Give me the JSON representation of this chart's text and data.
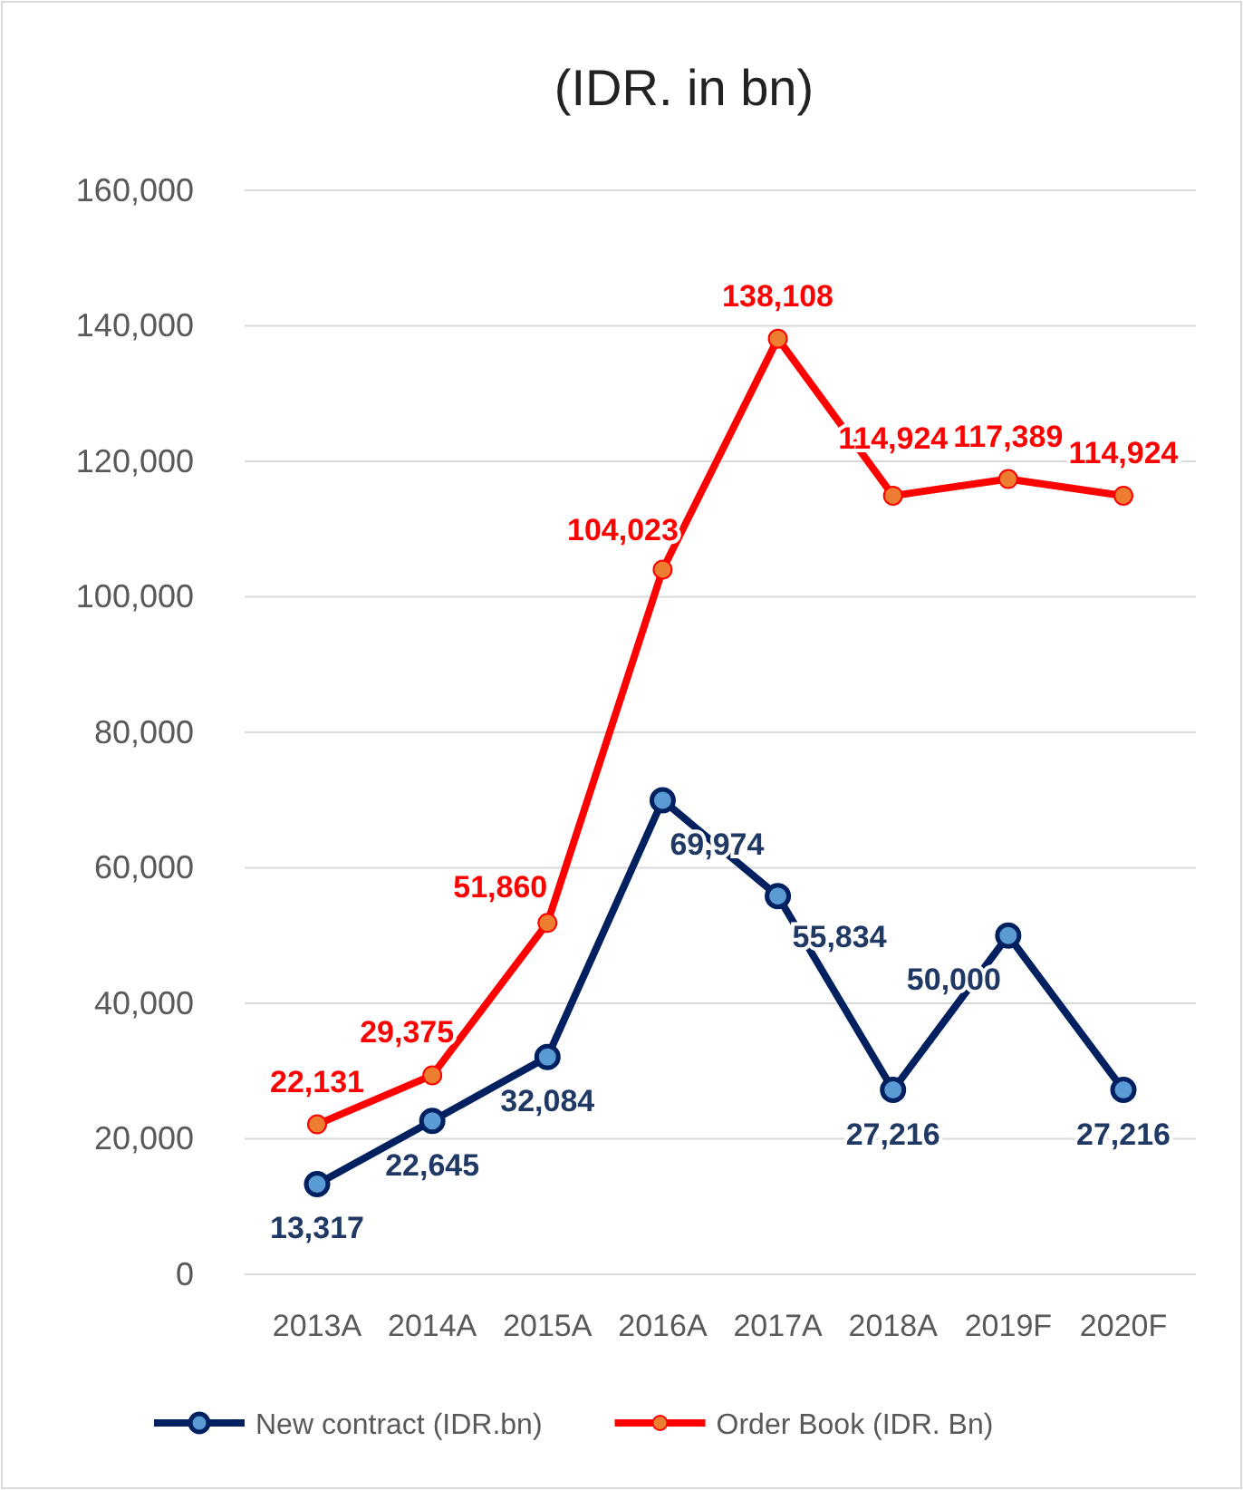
{
  "chart_data": {
    "type": "line",
    "title": "(IDR. in bn)",
    "categories": [
      "2013A",
      "2014A",
      "2015A",
      "2016A",
      "2017A",
      "2018A",
      "2019F",
      "2020F"
    ],
    "series": [
      {
        "name": "New contract (IDR.bn)",
        "color": "#002060",
        "values": [
          13317,
          22645,
          32084,
          69974,
          55834,
          27216,
          50000,
          27216
        ],
        "value_labels": [
          "13,317",
          "22,645",
          "32,084",
          "69,974",
          "55,834",
          "27,216",
          "50,000",
          "27,216"
        ]
      },
      {
        "name": "Order Book (IDR. Bn)",
        "color": "#ff0000",
        "values": [
          22131,
          29375,
          51860,
          104023,
          138108,
          114924,
          117389,
          114924
        ],
        "value_labels": [
          "22,131",
          "29,375",
          "51,860",
          "104,023",
          "138,108",
          "114,924",
          "117,389",
          "114,924"
        ]
      }
    ],
    "ylim": [
      0,
      160000
    ],
    "yticks": [
      {
        "value": 0,
        "label": "0"
      },
      {
        "value": 20000,
        "label": "20,000"
      },
      {
        "value": 40000,
        "label": "40,000"
      },
      {
        "value": 60000,
        "label": "60,000"
      },
      {
        "value": 80000,
        "label": "80,000"
      },
      {
        "value": 100000,
        "label": "100,000"
      },
      {
        "value": 120000,
        "label": "120,000"
      },
      {
        "value": 140000,
        "label": "140,000"
      },
      {
        "value": 160000,
        "label": "160,000"
      }
    ],
    "grid": "y",
    "legend": "bottom",
    "marker": "circle",
    "line_style": "solid"
  }
}
